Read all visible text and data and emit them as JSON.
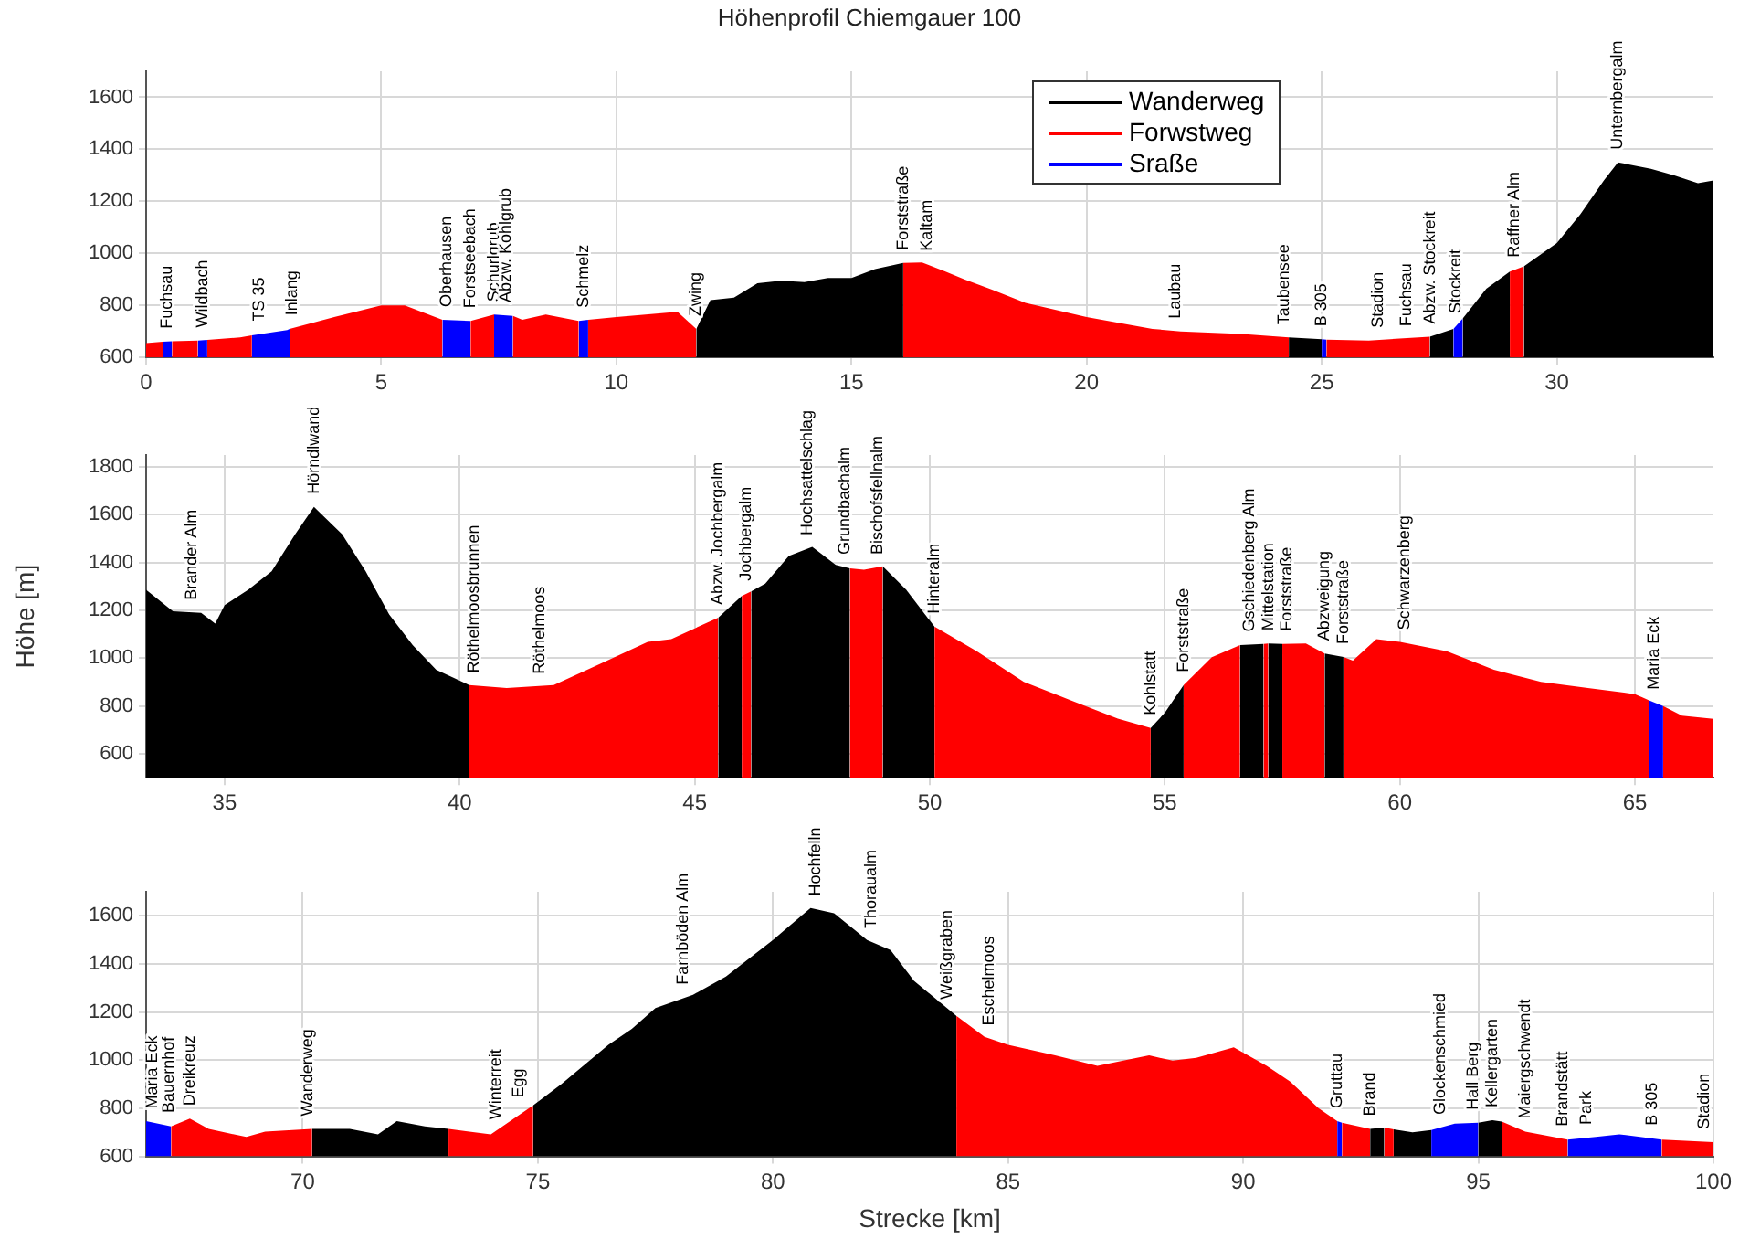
{
  "chart_data": [
    {
      "type": "area",
      "title": "Höhenprofil  Chiemgauer 100",
      "xlim": [
        0,
        33.33
      ],
      "xticks": [
        0,
        5,
        10,
        15,
        20,
        25,
        30
      ],
      "ylim": [
        600,
        1700
      ],
      "yticks": [
        600,
        800,
        1000,
        1200,
        1400,
        1600
      ],
      "grid": true,
      "legend": "top",
      "series": [
        {
          "name": "Wanderweg",
          "color": "#000000",
          "x": [
            11.7,
            12,
            12.5,
            13,
            13.5,
            14,
            14.5,
            15,
            15.5,
            16.1,
            null,
            24.3,
            25,
            null,
            27.3,
            27.8,
            null,
            28,
            28.5,
            29,
            null,
            29.3,
            30,
            30.5,
            31,
            31.3,
            32,
            32.5,
            33,
            33.33
          ],
          "values": [
            710,
            820,
            830,
            885,
            895,
            890,
            905,
            905,
            940,
            963,
            null,
            677,
            670,
            null,
            680,
            710,
            null,
            750,
            864,
            930,
            null,
            950,
            1040,
            1150,
            1280,
            1350,
            1325,
            1300,
            1270,
            1280
          ]
        },
        {
          "name": "Forwstweg",
          "color": "#ff0000",
          "x": [
            0,
            0.35,
            null,
            0.55,
            1.1,
            null,
            1.3,
            2,
            2.25,
            null,
            3.05,
            4,
            5,
            5.5,
            6.3,
            null,
            6.9,
            7.4,
            null,
            7.8,
            8,
            8.5,
            9.2,
            null,
            9.4,
            10,
            11.3,
            11.7,
            null,
            16.1,
            16.5,
            17,
            17.4,
            18,
            18.7,
            20,
            21.4,
            22,
            23.3,
            24.3,
            null,
            25.1,
            26,
            27.3,
            null,
            29,
            29.3
          ],
          "values": [
            655,
            660,
            null,
            662,
            665,
            null,
            667,
            677,
            685,
            null,
            710,
            755,
            800,
            800,
            745,
            null,
            740,
            765,
            null,
            760,
            745,
            765,
            740,
            null,
            745,
            755,
            775,
            710,
            null,
            963,
            965,
            930,
            900,
            860,
            810,
            755,
            710,
            700,
            690,
            677,
            null,
            668,
            665,
            680,
            null,
            930,
            950
          ]
        },
        {
          "name": "Sraße",
          "color": "#0000ff",
          "x": [
            0.35,
            0.55,
            null,
            1.1,
            1.3,
            null,
            2.25,
            3,
            3.05,
            null,
            6.3,
            6.9,
            null,
            7.4,
            7.8,
            null,
            9.2,
            9.4,
            null,
            25,
            25.1,
            null,
            27.8,
            28
          ],
          "values": [
            660,
            662,
            null,
            665,
            667,
            null,
            685,
            705,
            710,
            null,
            745,
            740,
            null,
            765,
            760,
            null,
            740,
            745,
            null,
            670,
            668,
            null,
            710,
            750
          ]
        }
      ],
      "annotations": [
        {
          "text": "Fuchsau",
          "x": 0.45,
          "y": 661
        },
        {
          "text": "Wildbach",
          "x": 1.2,
          "y": 666
        },
        {
          "text": "TS 35",
          "x": 2.4,
          "y": 690
        },
        {
          "text": "Inlang",
          "x": 3.1,
          "y": 712
        },
        {
          "text": "Oberhausen",
          "x": 6.4,
          "y": 745
        },
        {
          "text": "Forstseebach",
          "x": 6.9,
          "y": 740
        },
        {
          "text": "Schurlgrub",
          "x": 7.4,
          "y": 765
        },
        {
          "text": "Abzw. Kohlgrub",
          "x": 7.65,
          "y": 762
        },
        {
          "text": "Schmelz",
          "x": 9.3,
          "y": 742
        },
        {
          "text": "Zwing",
          "x": 11.7,
          "y": 710
        },
        {
          "text": "Forststraße",
          "x": 16.1,
          "y": 963
        },
        {
          "text": "Kaltam",
          "x": 16.6,
          "y": 960
        },
        {
          "text": "Laubau",
          "x": 21.9,
          "y": 700
        },
        {
          "text": "Taubensee",
          "x": 24.2,
          "y": 677
        },
        {
          "text": "B 305",
          "x": 25.0,
          "y": 670
        },
        {
          "text": "Stadion",
          "x": 26.2,
          "y": 665
        },
        {
          "text": "Fuchsau",
          "x": 26.8,
          "y": 670
        },
        {
          "text": "Abzw. Stockreit",
          "x": 27.3,
          "y": 680
        },
        {
          "text": "Stockreit",
          "x": 27.85,
          "y": 720
        },
        {
          "text": "Raffner Alm",
          "x": 29.1,
          "y": 935
        },
        {
          "text": "Unternbergalm",
          "x": 31.3,
          "y": 1350
        }
      ]
    },
    {
      "type": "area",
      "ylabel": "Höhe [m]",
      "xlim": [
        33.33,
        66.67
      ],
      "xticks": [
        35,
        40,
        45,
        50,
        55,
        60,
        65
      ],
      "ylim": [
        500,
        1850
      ],
      "yticks": [
        600,
        800,
        1000,
        1200,
        1400,
        1600,
        1800
      ],
      "grid": true,
      "series": [
        {
          "color": "#000000",
          "x": [
            33.33,
            33.9,
            34.5,
            34.8,
            35,
            35.5,
            36,
            36.5,
            36.9,
            37.5,
            38,
            38.5,
            39,
            39.5,
            40.2,
            null,
            45.5,
            46,
            null,
            46.2,
            46.5,
            47,
            47.5,
            48,
            48.3,
            null,
            49,
            49.5,
            50.1,
            null,
            54.7,
            55,
            55.4,
            null,
            56.6,
            57.1,
            null,
            57.2,
            57.5,
            null,
            58.4,
            58.8
          ],
          "values": [
            1286,
            1196,
            1190,
            1145,
            1222,
            1286,
            1364,
            1518,
            1633,
            1518,
            1364,
            1183,
            1055,
            952,
            888,
            null,
            1170,
            1260,
            null,
            1280,
            1312,
            1428,
            1466,
            1390,
            1376,
            null,
            1385,
            1286,
            1132,
            null,
            708,
            772,
            888,
            null,
            1055,
            1060,
            null,
            1062,
            1060,
            null,
            1020,
            1005
          ]
        },
        {
          "color": "#ff0000",
          "x": [
            40.2,
            41,
            42,
            43,
            44,
            44.5,
            45.5,
            null,
            46,
            46.2,
            null,
            48.3,
            48.6,
            49,
            null,
            50.1,
            51,
            52,
            53,
            54,
            54.7,
            null,
            55.4,
            56,
            56.6,
            null,
            57.1,
            57.2,
            null,
            57.5,
            58,
            58.4,
            null,
            58.8,
            59,
            59.5,
            60,
            61,
            62,
            63,
            64,
            65,
            65.3,
            null,
            65.6,
            66,
            66.67
          ],
          "values": [
            888,
            875,
            888,
            978,
            1068,
            1080,
            1170,
            null,
            1260,
            1280,
            null,
            1376,
            1370,
            1385,
            null,
            1132,
            1029,
            901,
            824,
            747,
            708,
            null,
            888,
            1004,
            1055,
            null,
            1060,
            1062,
            null,
            1060,
            1062,
            1020,
            null,
            1005,
            990,
            1080,
            1068,
            1029,
            952,
            901,
            875,
            850,
            824,
            null,
            800,
            760,
            746
          ]
        },
        {
          "color": "#0000ff",
          "x": [
            65.3,
            65.6
          ],
          "values": [
            824,
            800
          ]
        }
      ],
      "annotations": [
        {
          "text": "Brander Alm",
          "x": 34.3,
          "y": 1190
        },
        {
          "text": "Hörndlwand",
          "x": 36.9,
          "y": 1633
        },
        {
          "text": "Röthelmoosbrunnen",
          "x": 40.3,
          "y": 885
        },
        {
          "text": "Röthelmoos",
          "x": 41.7,
          "y": 880
        },
        {
          "text": "Abzw. Jochbergalm",
          "x": 45.5,
          "y": 1170
        },
        {
          "text": "Jochbergalm",
          "x": 46.1,
          "y": 1270
        },
        {
          "text": "Hochsattelschlag",
          "x": 47.4,
          "y": 1460
        },
        {
          "text": "Grundbachalm",
          "x": 48.2,
          "y": 1380
        },
        {
          "text": "Bischofsfellnalm",
          "x": 48.9,
          "y": 1380
        },
        {
          "text": "Hinteralm",
          "x": 50.1,
          "y": 1132
        },
        {
          "text": "Kohlstatt",
          "x": 54.7,
          "y": 708
        },
        {
          "text": "Forststraße",
          "x": 55.4,
          "y": 888
        },
        {
          "text": "Gschiedenberg Alm",
          "x": 56.8,
          "y": 1057
        },
        {
          "text": "Mittelstation",
          "x": 57.2,
          "y": 1062
        },
        {
          "text": "Forststraße",
          "x": 57.6,
          "y": 1060
        },
        {
          "text": "Abzweigung",
          "x": 58.4,
          "y": 1020
        },
        {
          "text": "Forststraße",
          "x": 58.8,
          "y": 1005
        },
        {
          "text": "Schwarzenberg",
          "x": 60.1,
          "y": 1065
        },
        {
          "text": "Maria Eck",
          "x": 65.4,
          "y": 815
        }
      ]
    },
    {
      "type": "area",
      "xlabel": "Strecke [km]",
      "xlim": [
        66.67,
        100
      ],
      "xticks": [
        70,
        75,
        80,
        85,
        90,
        95,
        100
      ],
      "ylim": [
        600,
        1700
      ],
      "yticks": [
        600,
        800,
        1000,
        1200,
        1400,
        1600
      ],
      "grid": true,
      "series": [
        {
          "color": "#000000",
          "x": [
            70.2,
            71,
            71.6,
            72,
            72.6,
            73.1,
            null,
            74.9,
            75.5,
            76.5,
            77,
            77.5,
            78.3,
            79,
            80,
            80.8,
            81.3,
            82,
            82.5,
            83,
            83.9,
            null,
            92.7,
            93,
            null,
            93.2,
            93.6,
            94,
            null,
            95,
            95.3,
            95.5
          ],
          "values": [
            714,
            714,
            692,
            747,
            725,
            714,
            null,
            812,
            900,
            1064,
            1130,
            1217,
            1272,
            1348,
            1500,
            1633,
            1611,
            1500,
            1458,
            1330,
            1184,
            null,
            714,
            720,
            null,
            712,
            700,
            710,
            null,
            740,
            750,
            745
          ]
        },
        {
          "color": "#ff0000",
          "x": [
            67.2,
            67.6,
            68,
            68.8,
            69.2,
            70.2,
            null,
            73.1,
            74,
            74.9,
            null,
            83.9,
            84.5,
            85,
            86,
            86.9,
            88,
            88.5,
            89,
            89.8,
            90.5,
            91,
            91.6,
            92,
            null,
            92.1,
            92.7,
            null,
            93,
            93.2,
            null,
            95.5,
            96,
            96.9,
            null,
            98.9,
            100
          ],
          "values": [
            725,
            757,
            714,
            681,
            703,
            714,
            null,
            714,
            692,
            812,
            null,
            1184,
            1097,
            1064,
            1020,
            976,
            1020,
            998,
            1010,
            1053,
            976,
            911,
            801,
            747,
            null,
            740,
            714,
            null,
            720,
            712,
            null,
            745,
            703,
            670,
            null,
            670,
            659
          ]
        },
        {
          "color": "#0000ff",
          "x": [
            66.67,
            67.2,
            null,
            92,
            92.1,
            null,
            94,
            94.5,
            95,
            null,
            96.9,
            97.5,
            98,
            98.9
          ],
          "values": [
            747,
            725,
            null,
            747,
            740,
            null,
            710,
            736,
            740,
            null,
            670,
            681,
            692,
            670
          ]
        }
      ],
      "annotations": [
        {
          "text": "Maria Eck",
          "x": 66.8,
          "y": 745
        },
        {
          "text": "Bauernhof",
          "x": 67.15,
          "y": 728
        },
        {
          "text": "Dreikreuz",
          "x": 67.6,
          "y": 757
        },
        {
          "text": "Wanderweg",
          "x": 70.1,
          "y": 714
        },
        {
          "text": "Winterreit",
          "x": 74.1,
          "y": 700
        },
        {
          "text": "Egg",
          "x": 74.6,
          "y": 790
        },
        {
          "text": "Farnböden Alm",
          "x": 78.1,
          "y": 1260
        },
        {
          "text": "Hochfelln",
          "x": 80.9,
          "y": 1630
        },
        {
          "text": "Thoraualm",
          "x": 82.1,
          "y": 1495
        },
        {
          "text": "Weißgraben",
          "x": 83.7,
          "y": 1200
        },
        {
          "text": "Eschelmoos",
          "x": 84.6,
          "y": 1090
        },
        {
          "text": "Gruttau",
          "x": 92.0,
          "y": 747
        },
        {
          "text": "Brand",
          "x": 92.7,
          "y": 714
        },
        {
          "text": "Glockenschmied",
          "x": 94.2,
          "y": 720
        },
        {
          "text": "Hall Berg",
          "x": 94.9,
          "y": 740
        },
        {
          "text": "Kellergarten",
          "x": 95.3,
          "y": 750
        },
        {
          "text": "Maiergschwendt",
          "x": 96.0,
          "y": 703
        },
        {
          "text": "Brandstätt",
          "x": 96.8,
          "y": 672
        },
        {
          "text": "Park",
          "x": 97.3,
          "y": 678
        },
        {
          "text": "B 305",
          "x": 98.7,
          "y": 675
        },
        {
          "text": "Stadion",
          "x": 99.8,
          "y": 660
        }
      ]
    }
  ]
}
